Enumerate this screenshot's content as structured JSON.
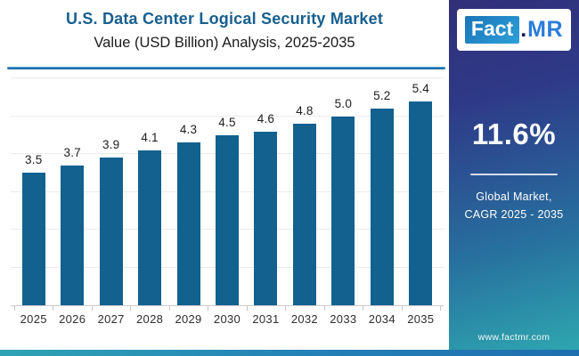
{
  "header": {
    "title": "U.S. Data Center Logical Security Market",
    "subtitle": "Value (USD Billion) Analysis, 2025-2035"
  },
  "logo": {
    "part1": "Fact",
    "dot": ".",
    "part2": "MR"
  },
  "sidebar": {
    "cagr_value": "11.6%",
    "label_line1": "Global Market,",
    "label_line2": "CAGR 2025 - 2035",
    "website": "www.factmr.com"
  },
  "colors": {
    "bar": "#12618f",
    "title_text": "#175f8f",
    "divider_accent": "#1f74b2",
    "sidebar_gradient_top": "#312f79",
    "sidebar_gradient_bottom": "#2fa9b0",
    "logo_fact_bg": "#2389c9",
    "logo_mr_text": "#2b7cd9"
  },
  "chart_data": {
    "type": "bar",
    "title": "U.S. Data Center Logical Security Market Value (USD Billion) Analysis, 2025-2035",
    "categories": [
      "2025",
      "2026",
      "2027",
      "2028",
      "2029",
      "2030",
      "2031",
      "2032",
      "2033",
      "2034",
      "2035"
    ],
    "values": [
      3.5,
      3.7,
      3.9,
      4.1,
      4.3,
      4.5,
      4.6,
      4.8,
      5.0,
      5.2,
      5.4
    ],
    "xlabel": "",
    "ylabel": "Value (USD Billion)",
    "ylim": [
      0,
      6
    ],
    "grid": true,
    "gridline_step": 1,
    "legend": "none",
    "value_labels": "above-bars",
    "value_label_decimals": 1
  }
}
